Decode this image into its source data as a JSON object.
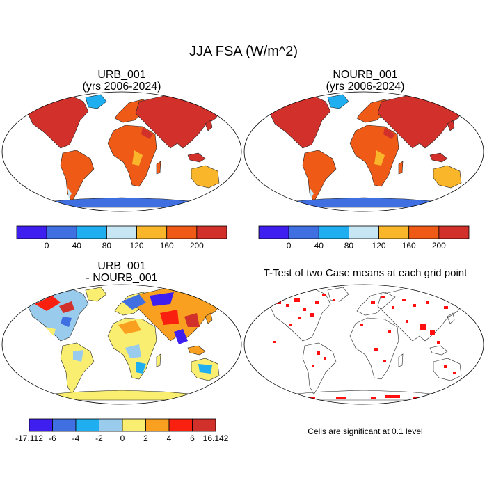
{
  "title": "JJA FSA (W/m^2)",
  "panels": [
    {
      "id": "urb",
      "title_line1": "URB_001",
      "title_line2": "(yrs 2006-2024)"
    },
    {
      "id": "nourb",
      "title_line1": "NOURB_001",
      "title_line2": "(yrs 2006-2024)"
    },
    {
      "id": "diff",
      "title_line1": "URB_001",
      "title_line2": "- NOURB_001"
    },
    {
      "id": "ttest",
      "title_line1": "T-Test of two Case means at each grid point",
      "title_line2": ""
    }
  ],
  "colorbar_abs": {
    "colors": [
      "#3f1ff0",
      "#3f6fe0",
      "#1faff0",
      "#c6e6f4",
      "#f9b62a",
      "#ef5a16",
      "#d2302a"
    ],
    "labels": [
      "0",
      "40",
      "80",
      "120",
      "160",
      "200"
    ]
  },
  "colorbar_diff": {
    "colors": [
      "#3f1ff0",
      "#3f6fe0",
      "#1faff0",
      "#99cbec",
      "#f9ee70",
      "#f9a020",
      "#f92010",
      "#d2302a"
    ],
    "labels": [
      "-17.112",
      "-6",
      "-4",
      "-2",
      "0",
      "2",
      "4",
      "6",
      "16.142"
    ]
  },
  "note": "Cells are significant at 0.1 level"
}
